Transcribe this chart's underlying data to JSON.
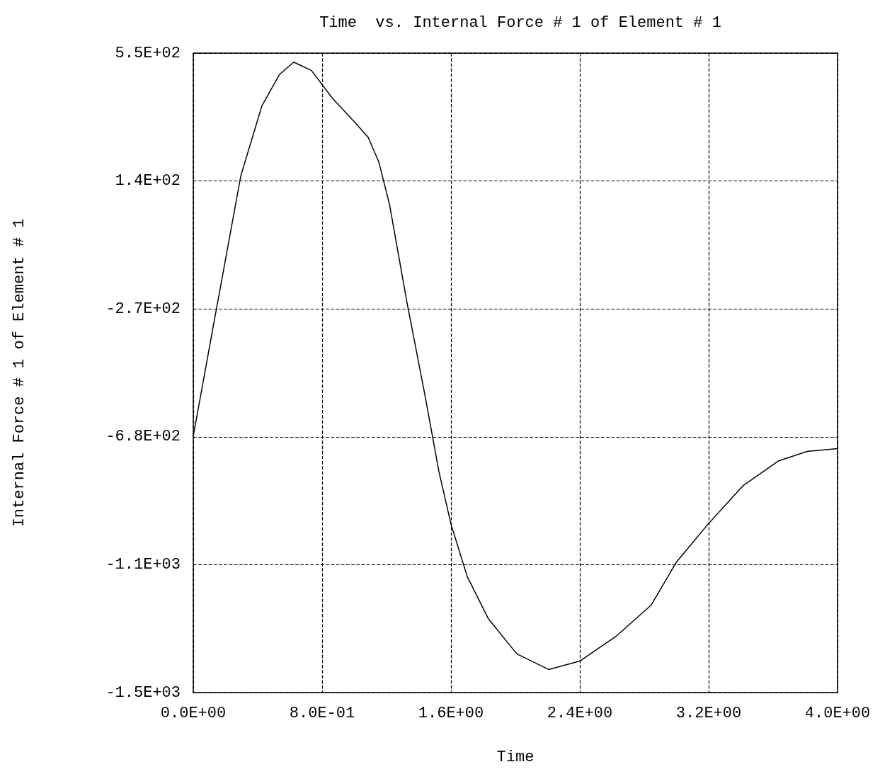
{
  "chart_data": {
    "type": "line",
    "title": "Time  vs. Internal Force # 1 of Element # 1",
    "xlabel": "Time",
    "ylabel": "Internal Force # 1 of Element # 1",
    "x": [
      0,
      0.119,
      0.295,
      0.426,
      0.536,
      0.624,
      0.734,
      0.866,
      0.998,
      1.086,
      1.152,
      1.218,
      1.327,
      1.437,
      1.525,
      1.6,
      1.701,
      1.833,
      2.009,
      2.207,
      2.4,
      2.624,
      2.844,
      2.998,
      3.196,
      3.415,
      3.635,
      3.811,
      4.0
    ],
    "values": [
      -678,
      -340,
      156,
      381,
      482,
      521,
      494,
      404,
      331,
      280,
      201,
      66,
      -250,
      -543,
      -791,
      -960,
      -1128,
      -1264,
      -1376,
      -1426,
      -1399,
      -1320,
      -1219,
      -1083,
      -960,
      -836,
      -757,
      -727,
      -718
    ],
    "color": "#000000",
    "marker": "none",
    "line_style": "solid",
    "grid": true,
    "xlim": [
      0,
      4
    ],
    "ylim": [
      -1500,
      550
    ],
    "xticks": [
      {
        "value": 0,
        "label": "0.0E+00"
      },
      {
        "value": 0.8,
        "label": "8.0E-01"
      },
      {
        "value": 1.6,
        "label": "1.6E+00"
      },
      {
        "value": 2.4,
        "label": "2.4E+00"
      },
      {
        "value": 3.2,
        "label": "3.2E+00"
      },
      {
        "value": 4,
        "label": "4.0E+00"
      }
    ],
    "yticks": [
      {
        "value": -1500,
        "label": "-1.5E+03"
      },
      {
        "value": -1090,
        "label": "-1.1E+03"
      },
      {
        "value": -680,
        "label": "-6.8E+02"
      },
      {
        "value": -270,
        "label": "-2.7E+02"
      },
      {
        "value": 140,
        "label": "1.4E+02"
      },
      {
        "value": 550,
        "label": "5.5E+02"
      }
    ]
  }
}
